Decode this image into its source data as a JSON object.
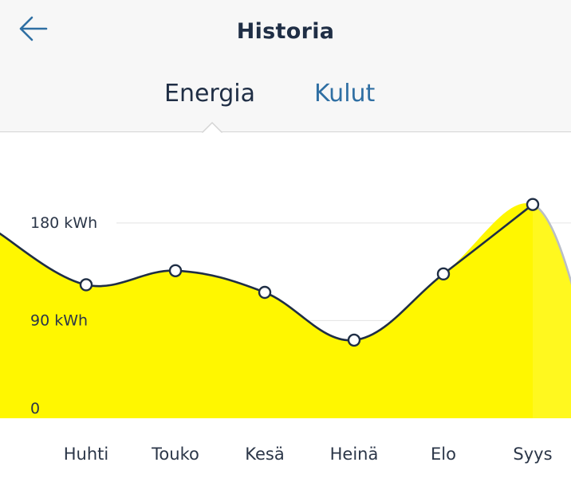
{
  "header": {
    "title": "Historia",
    "back_icon": "arrow-left-icon"
  },
  "tabs": [
    {
      "label": "Energia",
      "selected": true
    },
    {
      "label": "Kulut",
      "selected": false
    }
  ],
  "colors": {
    "accent": "#2f6fa3",
    "text_dark": "#1f2e45",
    "fill": "#fff700",
    "line": "#1f2e45"
  },
  "chart_data": {
    "type": "area",
    "categories": [
      "Huhti",
      "Touko",
      "Kesä",
      "Heinä",
      "Elo",
      "Syys"
    ],
    "series": [
      {
        "values": [
          123,
          136,
          116,
          72,
          133,
          197
        ]
      }
    ],
    "y_tick_labels": [
      "0",
      "90 kWh",
      "180 kWh"
    ],
    "y_ticks": [
      0,
      90,
      180
    ],
    "ylim": [
      0,
      225
    ],
    "grid": true
  }
}
